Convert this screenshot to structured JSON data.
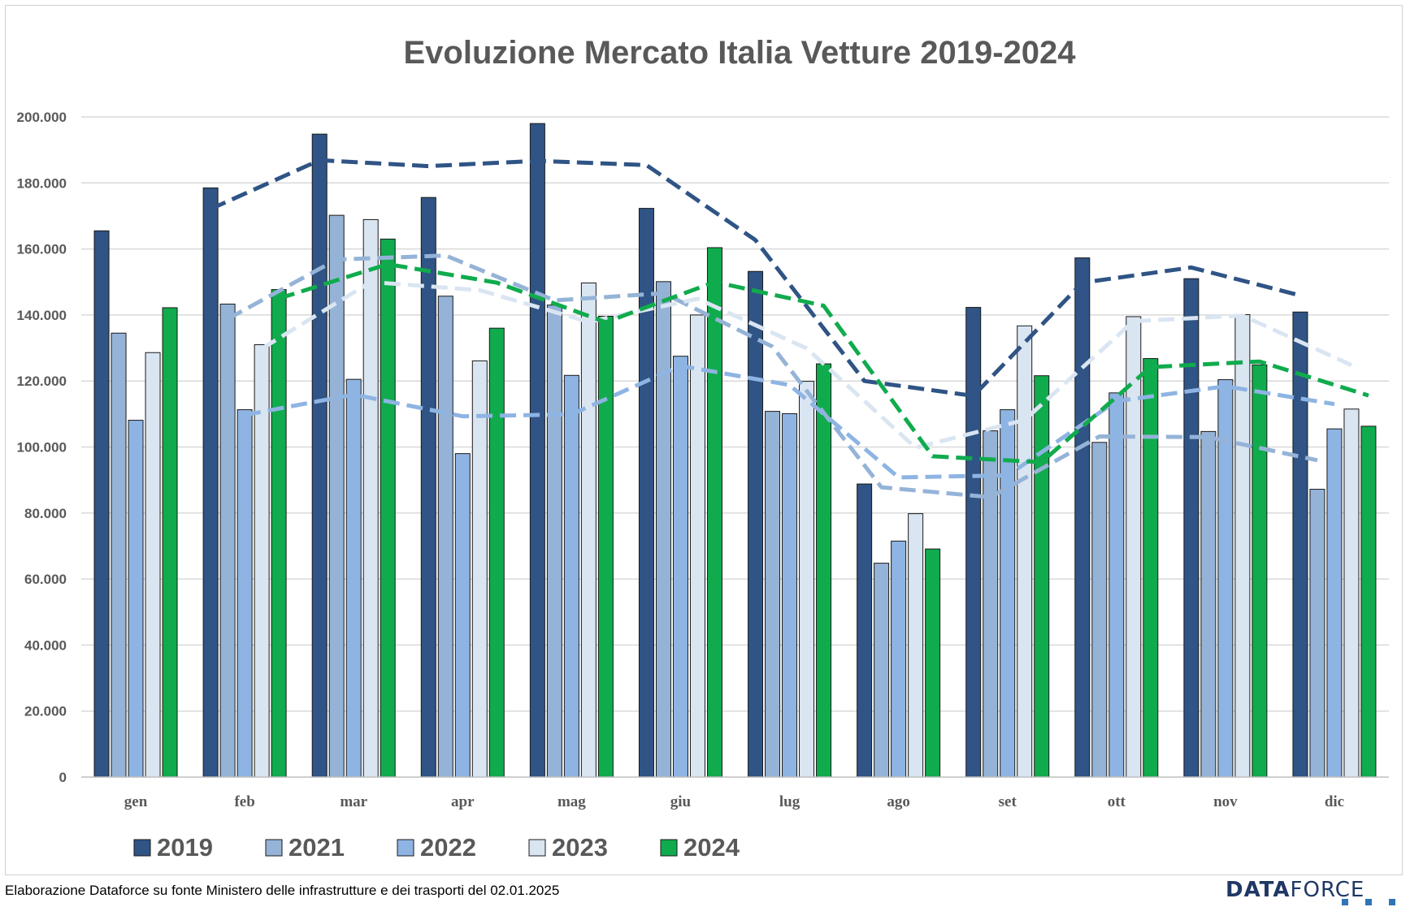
{
  "chart_data": {
    "type": "bar",
    "title": "Evoluzione Mercato Italia Vetture 2019-2024",
    "xlabel": "",
    "ylabel": "",
    "ylim": [
      0,
      200000
    ],
    "yticks": [
      0,
      20000,
      40000,
      60000,
      80000,
      100000,
      120000,
      140000,
      160000,
      180000,
      200000
    ],
    "ytick_labels": [
      "0",
      "20.000",
      "40.000",
      "60.000",
      "80.000",
      "100.000",
      "120.000",
      "140.000",
      "160.000",
      "180.000",
      "200.000"
    ],
    "grid": true,
    "legend_position": "bottom-left",
    "categories": [
      "gen",
      "feb",
      "mar",
      "apr",
      "mag",
      "giu",
      "lug",
      "ago",
      "set",
      "ott",
      "nov",
      "dic"
    ],
    "series": [
      {
        "name": "2019",
        "color": "#2f5485",
        "values": [
          165500,
          178500,
          194800,
          175600,
          198000,
          172300,
          153200,
          88800,
          142300,
          157300,
          151000,
          140900
        ]
      },
      {
        "name": "2021",
        "color": "#95b3d7",
        "values": [
          134500,
          143300,
          170200,
          145700,
          143000,
          150100,
          110800,
          64800,
          104900,
          101400,
          104700,
          87200
        ]
      },
      {
        "name": "2022",
        "color": "#8eb4e3",
        "values": [
          108100,
          111300,
          120500,
          98000,
          121700,
          127500,
          110100,
          71500,
          111300,
          116400,
          120400,
          105500
        ]
      },
      {
        "name": "2023",
        "color": "#dae5f2",
        "values": [
          128600,
          131000,
          168900,
          126100,
          149700,
          140000,
          119900,
          79800,
          136700,
          139500,
          140100,
          111500
        ]
      },
      {
        "name": "2024",
        "color": "#10ab4d",
        "values": [
          142200,
          147700,
          163000,
          136000,
          139600,
          160400,
          125200,
          69100,
          121600,
          126800,
          124900,
          106300
        ]
      }
    ],
    "trendlines": [
      {
        "series": "2019",
        "color": "#2f5485",
        "values": [
          172100,
          186900,
          185100,
          186700,
          185400,
          162700,
          120000,
          115500,
          149800,
          154400,
          145900
        ]
      },
      {
        "series": "2021",
        "color": "#95b3d7",
        "values": [
          138800,
          156800,
          158000,
          144400,
          146600,
          130400,
          87800,
          84800,
          103200,
          103000,
          96000
        ]
      },
      {
        "series": "2022",
        "color": "#8eb4e3",
        "values": [
          109700,
          115900,
          109300,
          109900,
          124600,
          118800,
          90800,
          91400,
          113900,
          118400,
          113000
        ]
      },
      {
        "series": "2023",
        "color": "#dae5f2",
        "values": [
          129800,
          150000,
          147500,
          137900,
          144900,
          129900,
          99800,
          108200,
          138100,
          139800,
          124800
        ]
      },
      {
        "series": "2024",
        "color": "#10ab4d",
        "values": [
          145000,
          155400,
          149800,
          137800,
          150000,
          142800,
          97200,
          95400,
          124200,
          125900,
          115600
        ]
      }
    ]
  },
  "footer": {
    "source": "Elaborazione Dataforce su fonte Ministero delle infrastrutture e dei trasporti del 02.01.2025",
    "logo_bold": "DATA",
    "logo_light": "FORCE"
  },
  "colors": {
    "logo_text": "#1f3864",
    "logo_dots": "#2e75b6",
    "gridline": "#d9d9d9",
    "axis_text": "#595959"
  }
}
